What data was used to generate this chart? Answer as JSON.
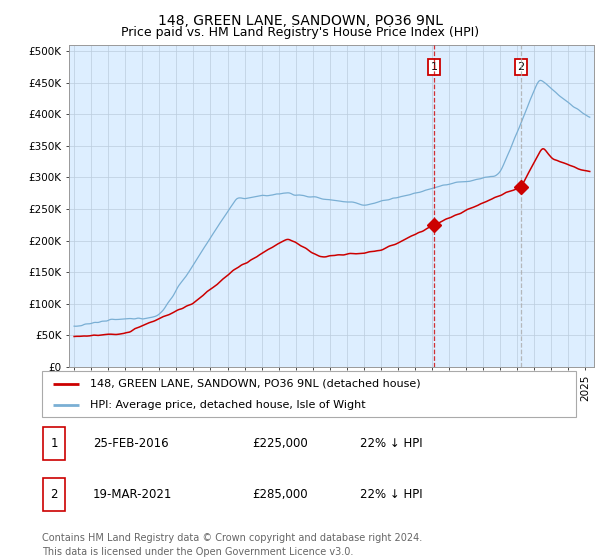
{
  "title": "148, GREEN LANE, SANDOWN, PO36 9NL",
  "subtitle": "Price paid vs. HM Land Registry's House Price Index (HPI)",
  "ylabel_ticks": [
    "£0",
    "£50K",
    "£100K",
    "£150K",
    "£200K",
    "£250K",
    "£300K",
    "£350K",
    "£400K",
    "£450K",
    "£500K"
  ],
  "ytick_values": [
    0,
    50000,
    100000,
    150000,
    200000,
    250000,
    300000,
    350000,
    400000,
    450000,
    500000
  ],
  "ylim": [
    0,
    510000
  ],
  "xlim_start": 1994.7,
  "xlim_end": 2025.5,
  "marker1_date_x": 2016.12,
  "marker2_date_x": 2021.21,
  "marker1_price": 225000,
  "marker2_price": 285000,
  "legend_line1": "148, GREEN LANE, SANDOWN, PO36 9NL (detached house)",
  "legend_line2": "HPI: Average price, detached house, Isle of Wight",
  "footnote": "Contains HM Land Registry data © Crown copyright and database right 2024.\nThis data is licensed under the Open Government Licence v3.0.",
  "hpi_color": "#7aafd4",
  "price_color": "#cc0000",
  "marker_box_color": "#cc0000",
  "dashed_line_color_1": "#cc0000",
  "dashed_line_color_2": "#aaaaaa",
  "background_color": "#ddeeff",
  "grid_color": "#bbccdd",
  "title_fontsize": 10,
  "subtitle_fontsize": 9,
  "axis_fontsize": 7.5,
  "legend_fontsize": 8,
  "table_fontsize": 8.5
}
